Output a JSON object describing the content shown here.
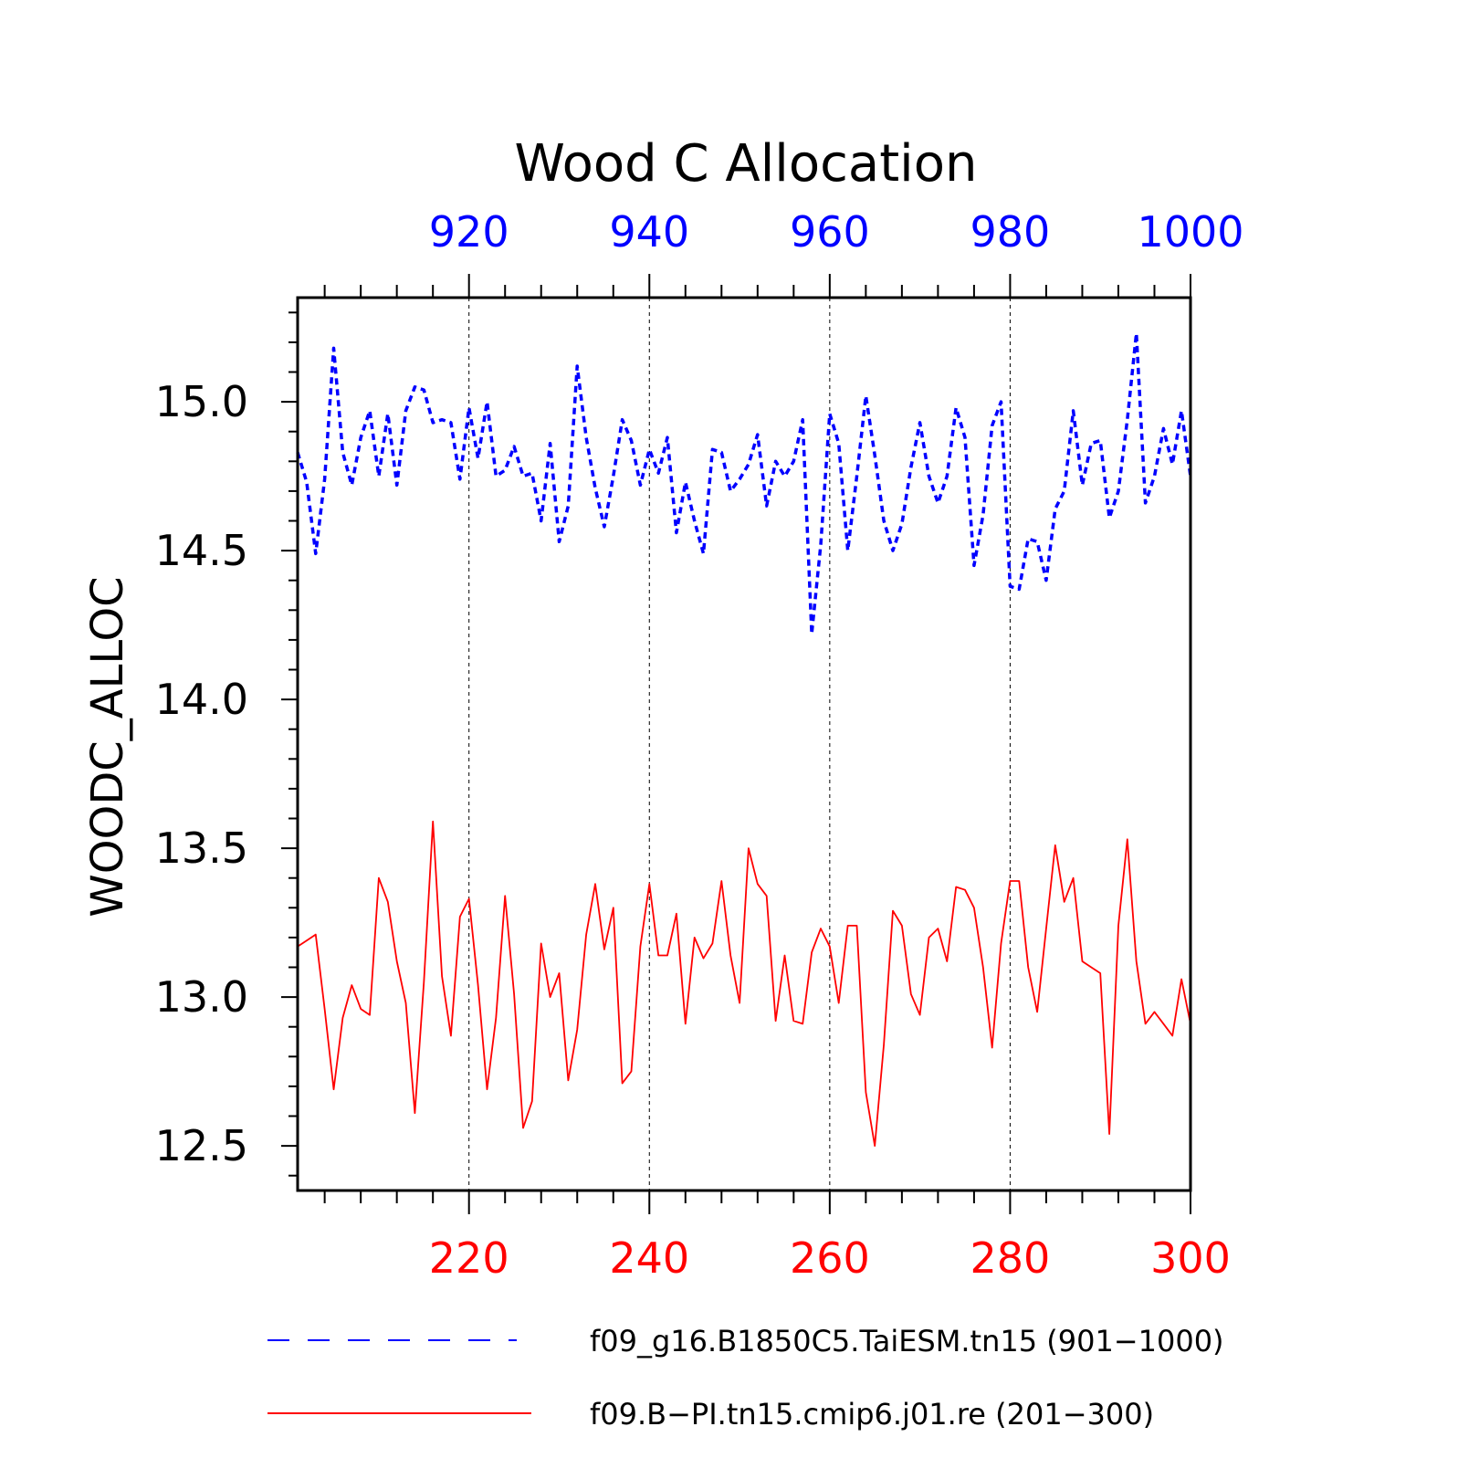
{
  "chart_data": {
    "type": "line",
    "title": "Wood C Allocation",
    "ylabel": "WOODC_ALLOC",
    "xlabel": "",
    "ylim": [
      12.35,
      15.35
    ],
    "yticks": [
      12.5,
      13.0,
      13.5,
      14.0,
      14.5,
      15.0
    ],
    "ytick_labels": [
      "12.5",
      "13.0",
      "13.5",
      "14.0",
      "14.5",
      "15.0"
    ],
    "grid": "vertical dashed at labeled x ticks",
    "x_top": {
      "range": [
        901,
        1000
      ],
      "ticks": [
        920,
        940,
        960,
        980,
        1000
      ],
      "tick_labels": [
        "920",
        "940",
        "960",
        "980",
        "1000"
      ],
      "color": "#0000ff"
    },
    "x_bottom": {
      "range": [
        201,
        300
      ],
      "ticks": [
        220,
        240,
        260,
        280,
        300
      ],
      "tick_labels": [
        "220",
        "240",
        "260",
        "280",
        "300"
      ],
      "color": "#ff0000"
    },
    "series": [
      {
        "name": "f09_g16.B1850C5.TaiESM.tn15 (901−1000)",
        "axis": "top",
        "style": "dashed",
        "color": "#0000ff",
        "x_start": 901,
        "values": [
          14.83,
          14.73,
          14.49,
          14.74,
          15.18,
          14.83,
          14.72,
          14.88,
          14.97,
          14.75,
          14.96,
          14.72,
          14.97,
          15.05,
          15.04,
          14.93,
          14.94,
          14.93,
          14.74,
          14.98,
          14.81,
          15.0,
          14.75,
          14.77,
          14.85,
          14.75,
          14.76,
          14.6,
          14.86,
          14.53,
          14.65,
          15.12,
          14.88,
          14.71,
          14.58,
          14.75,
          14.94,
          14.87,
          14.72,
          14.84,
          14.76,
          14.88,
          14.56,
          14.73,
          14.6,
          14.49,
          14.84,
          14.83,
          14.7,
          14.74,
          14.79,
          14.89,
          14.65,
          14.8,
          14.75,
          14.8,
          14.94,
          14.22,
          14.52,
          14.96,
          14.86,
          14.5,
          14.75,
          15.02,
          14.82,
          14.6,
          14.5,
          14.59,
          14.78,
          14.93,
          14.75,
          14.66,
          14.75,
          14.98,
          14.88,
          14.45,
          14.62,
          14.92,
          15.0,
          14.38,
          14.37,
          14.54,
          14.53,
          14.4,
          14.64,
          14.7,
          14.97,
          14.72,
          14.86,
          14.87,
          14.61,
          14.7,
          14.94,
          15.23,
          14.66,
          14.75,
          14.91,
          14.79,
          14.97,
          14.75
        ]
      },
      {
        "name": "f09.B−PI.tn15.cmip6.j01.re (201−300)",
        "axis": "bottom",
        "style": "solid",
        "color": "#ff0000",
        "x_start": 201,
        "values": [
          13.17,
          13.19,
          13.21,
          12.96,
          12.69,
          12.93,
          13.04,
          12.96,
          12.94,
          13.4,
          13.32,
          13.12,
          12.98,
          12.61,
          13.05,
          13.59,
          13.07,
          12.87,
          13.27,
          13.33,
          13.04,
          12.69,
          12.93,
          13.34,
          13.01,
          12.56,
          12.65,
          13.18,
          13.0,
          13.08,
          12.72,
          12.89,
          13.21,
          13.38,
          13.16,
          13.3,
          12.71,
          12.75,
          13.17,
          13.38,
          13.14,
          13.14,
          13.28,
          12.91,
          13.2,
          13.13,
          13.18,
          13.39,
          13.14,
          12.98,
          13.5,
          13.38,
          13.34,
          12.92,
          13.14,
          12.92,
          12.91,
          13.15,
          13.23,
          13.17,
          12.98,
          13.24,
          13.24,
          12.68,
          12.5,
          12.84,
          13.29,
          13.24,
          13.01,
          12.94,
          13.2,
          13.23,
          13.12,
          13.37,
          13.36,
          13.3,
          13.1,
          12.83,
          13.18,
          13.39,
          13.39,
          13.1,
          12.95,
          13.23,
          13.51,
          13.32,
          13.4,
          13.12,
          13.1,
          13.08,
          12.54,
          13.24,
          13.53,
          13.12,
          12.91,
          12.95,
          12.91,
          12.87,
          13.06,
          12.91
        ]
      }
    ]
  }
}
